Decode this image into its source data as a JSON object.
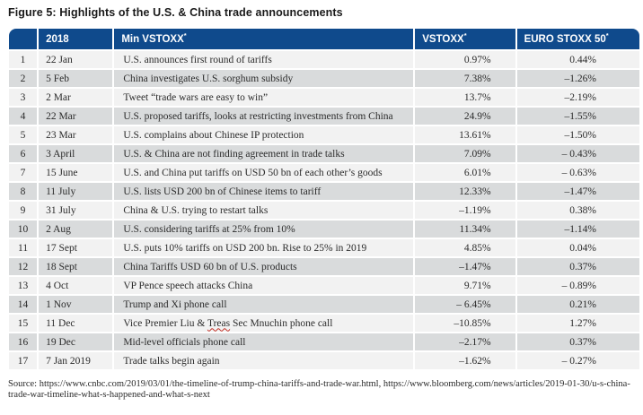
{
  "figure_title": "Figure 5: Highlights of the U.S. & China trade announcements",
  "table": {
    "columns": [
      {
        "id": "num",
        "label": "",
        "sup": ""
      },
      {
        "id": "date",
        "label": "2018",
        "sup": ""
      },
      {
        "id": "event",
        "label": "Min VSTOXX",
        "sup": "*"
      },
      {
        "id": "vst",
        "label": "VSTOXX",
        "sup": "*"
      },
      {
        "id": "euro",
        "label": "EURO STOXX 50",
        "sup": "*"
      }
    ],
    "rows": [
      {
        "num": "1",
        "date": "22 Jan",
        "event": "U.S. announces first round of tariffs",
        "vstoxx": "0.97%",
        "euro": "0.44%"
      },
      {
        "num": "2",
        "date": "5 Feb",
        "event": "China investigates U.S. sorghum subsidy",
        "vstoxx": "7.38%",
        "euro": "–1.26%"
      },
      {
        "num": "3",
        "date": "2 Mar",
        "event": "Tweet “trade wars are easy to win”",
        "vstoxx": "13.7%",
        "euro": "–2.19%"
      },
      {
        "num": "4",
        "date": "22 Mar",
        "event": "U.S. proposed tariffs, looks at restricting investments from China",
        "vstoxx": "24.9%",
        "euro": "–1.55%"
      },
      {
        "num": "5",
        "date": "23 Mar",
        "event": "U.S. complains about Chinese IP protection",
        "vstoxx": "13.61%",
        "euro": "–1.50%"
      },
      {
        "num": "6",
        "date": "3 April",
        "event": "U.S. & China are not finding agreement in trade talks",
        "vstoxx": "7.09%",
        "euro": "– 0.43%"
      },
      {
        "num": "7",
        "date": "15 June",
        "event": "U.S. and China put tariffs on USD 50 bn of each other’s goods",
        "vstoxx": "6.01%",
        "euro": "– 0.63%"
      },
      {
        "num": "8",
        "date": "11 July",
        "event": "U.S. lists USD 200 bn of Chinese items to tariff",
        "vstoxx": "12.33%",
        "euro": "–1.47%"
      },
      {
        "num": "9",
        "date": "31 July",
        "event": "China & U.S. trying to restart talks",
        "vstoxx": "–1.19%",
        "euro": "0.38%"
      },
      {
        "num": "10",
        "date": "2 Aug",
        "event": "U.S. considering tariffs at 25% from 10%",
        "vstoxx": "11.34%",
        "euro": "–1.14%"
      },
      {
        "num": "11",
        "date": "17 Sept",
        "event": "U.S. puts 10% tariffs on USD 200 bn. Rise to 25% in 2019",
        "vstoxx": "4.85%",
        "euro": "0.04%"
      },
      {
        "num": "12",
        "date": "18 Sept",
        "event": "China Tariffs USD 60 bn of U.S. products",
        "vstoxx": "–1.47%",
        "euro": "0.37%"
      },
      {
        "num": "13",
        "date": "4 Oct",
        "event": "VP Pence speech attacks China",
        "vstoxx": "9.71%",
        "euro": "– 0.89%"
      },
      {
        "num": "14",
        "date": "1 Nov",
        "event": "Trump and Xi phone call",
        "vstoxx": "– 6.45%",
        "euro": "0.21%"
      },
      {
        "num": "15",
        "date": "11 Dec",
        "event": "Vice Premier Liu & Treas Sec Mnuchin phone call",
        "misspelled": "Treas",
        "vstoxx": "–10.85%",
        "euro": "1.27%"
      },
      {
        "num": "16",
        "date": "19 Dec",
        "event": "Mid-level officials phone call",
        "vstoxx": "–2.17%",
        "euro": "0.37%"
      },
      {
        "num": "17",
        "date": "7 Jan 2019",
        "event": "Trade talks begin again",
        "vstoxx": "–1.62%",
        "euro": "– 0.27%"
      }
    ]
  },
  "source": "Source: https://www.cnbc.com/2019/03/01/the-timeline-of-trump-china-tariffs-and-trade-war.html, https://www.bloomberg.com/news/articles/2019-01-30/u-s-china-trade-war-timeline-what-s-happened-and-what-s-next",
  "colors": {
    "header_bg": "#0f4a8c",
    "header_text": "#ffffff",
    "row_odd_bg": "#f2f2f2",
    "row_even_bg": "#d9dbdc",
    "body_text": "#2b2b2b",
    "spellcheck_underline": "#c33026"
  }
}
